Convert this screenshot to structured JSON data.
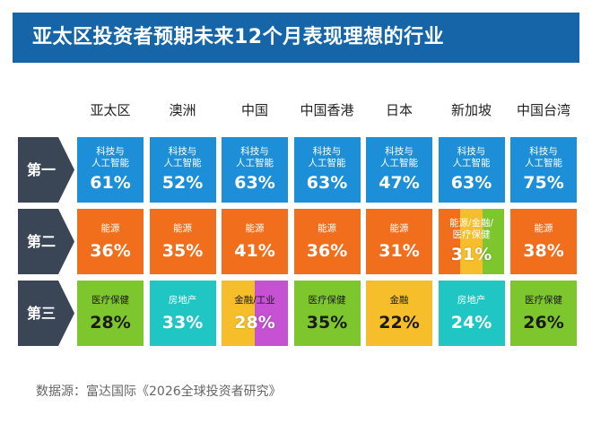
{
  "title": "亚太区投资者预期未来12个月表现理想的行业",
  "source": "数据源：富达国际《2026全球投资者研究》",
  "colors": {
    "banner": "#1565a8",
    "rank_label": "#3a4655",
    "科技与人工智能": "#1d8fd9",
    "能源": "#f06e1c",
    "金融": "#f7be2b",
    "医疗保健": "#7dc62e",
    "房地产": "#1fc6c4",
    "工业": "#c651d2"
  },
  "chart_data": {
    "type": "table",
    "columns": [
      "亚太区",
      "澳洲",
      "中国",
      "中国香港",
      "日本",
      "新加坡",
      "中国台湾"
    ],
    "rows": [
      {
        "rank": "第一",
        "cells": [
          {
            "label": "科技与\n人工智能",
            "value": "61%",
            "sectors": [
              "科技与人工智能"
            ]
          },
          {
            "label": "科技与\n人工智能",
            "value": "52%",
            "sectors": [
              "科技与人工智能"
            ]
          },
          {
            "label": "科技与\n人工智能",
            "value": "63%",
            "sectors": [
              "科技与人工智能"
            ]
          },
          {
            "label": "科技与\n人工智能",
            "value": "63%",
            "sectors": [
              "科技与人工智能"
            ]
          },
          {
            "label": "科技与\n人工智能",
            "value": "47%",
            "sectors": [
              "科技与人工智能"
            ]
          },
          {
            "label": "科技与\n人工智能",
            "value": "63%",
            "sectors": [
              "科技与人工智能"
            ]
          },
          {
            "label": "科技与\n人工智能",
            "value": "75%",
            "sectors": [
              "科技与人工智能"
            ]
          }
        ]
      },
      {
        "rank": "第二",
        "cells": [
          {
            "label": "能源",
            "value": "36%",
            "sectors": [
              "能源"
            ]
          },
          {
            "label": "能源",
            "value": "35%",
            "sectors": [
              "能源"
            ]
          },
          {
            "label": "能源",
            "value": "41%",
            "sectors": [
              "能源"
            ]
          },
          {
            "label": "能源",
            "value": "36%",
            "sectors": [
              "能源"
            ]
          },
          {
            "label": "能源",
            "value": "31%",
            "sectors": [
              "能源"
            ]
          },
          {
            "label": "能源/金融/\n医疗保健",
            "value": "31%",
            "sectors": [
              "能源",
              "金融",
              "医疗保健"
            ]
          },
          {
            "label": "能源",
            "value": "38%",
            "sectors": [
              "能源"
            ]
          }
        ]
      },
      {
        "rank": "第三",
        "cells": [
          {
            "label": "医疗保健",
            "value": "28%",
            "sectors": [
              "医疗保健"
            ]
          },
          {
            "label": "房地产",
            "value": "33%",
            "sectors": [
              "房地产"
            ]
          },
          {
            "label": "金融/工业",
            "value": "28%",
            "sectors": [
              "金融",
              "工业"
            ]
          },
          {
            "label": "医疗保健",
            "value": "35%",
            "sectors": [
              "医疗保健"
            ]
          },
          {
            "label": "金融",
            "value": "22%",
            "sectors": [
              "金融"
            ]
          },
          {
            "label": "房地产",
            "value": "24%",
            "sectors": [
              "房地产"
            ]
          },
          {
            "label": "医疗保健",
            "value": "26%",
            "sectors": [
              "医疗保健"
            ]
          }
        ]
      }
    ]
  }
}
